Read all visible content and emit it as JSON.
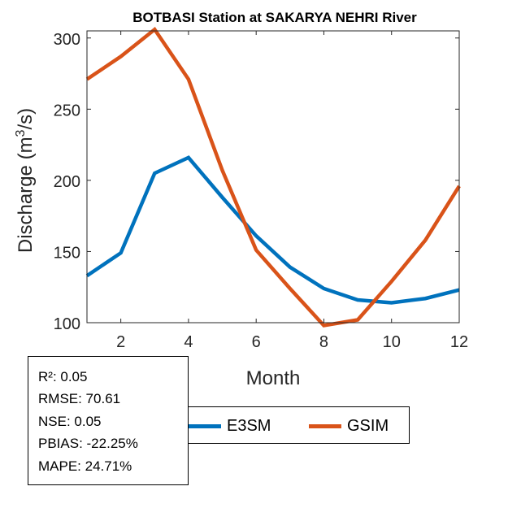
{
  "chart_data": {
    "type": "line",
    "title": "BOTBASI  Station at  SAKARYA NEHRI  River",
    "xlabel": "Month",
    "ylabel_parts": [
      "Discharge (m",
      "3",
      "/s)"
    ],
    "xlim": [
      1,
      12
    ],
    "ylim": [
      100,
      305
    ],
    "xticks": [
      2,
      4,
      6,
      8,
      10,
      12
    ],
    "yticks": [
      100,
      150,
      200,
      250,
      300
    ],
    "x": [
      1,
      2,
      3,
      4,
      5,
      6,
      7,
      8,
      9,
      10,
      11,
      12
    ],
    "series": [
      {
        "name": "E3SM",
        "color": "#0072BD",
        "values": [
          133,
          149,
          205,
          216,
          188,
          161,
          139,
          124,
          116,
          114,
          117,
          123
        ]
      },
      {
        "name": "GSIM",
        "color": "#D95319",
        "values": [
          271,
          287,
          306,
          271,
          207,
          151,
          124,
          98,
          102,
          129,
          158,
          196
        ]
      }
    ]
  },
  "stats": {
    "r2": "R²: 0.05",
    "rmse": "RMSE: 70.61",
    "nse": "NSE: 0.05",
    "pbias": "PBIAS: -22.25%",
    "mape": "MAPE: 24.71%"
  },
  "legend": {
    "e3sm": "E3SM",
    "gsim": "GSIM",
    "e3sm_color": "#0072BD",
    "gsim_color": "#D95319"
  }
}
